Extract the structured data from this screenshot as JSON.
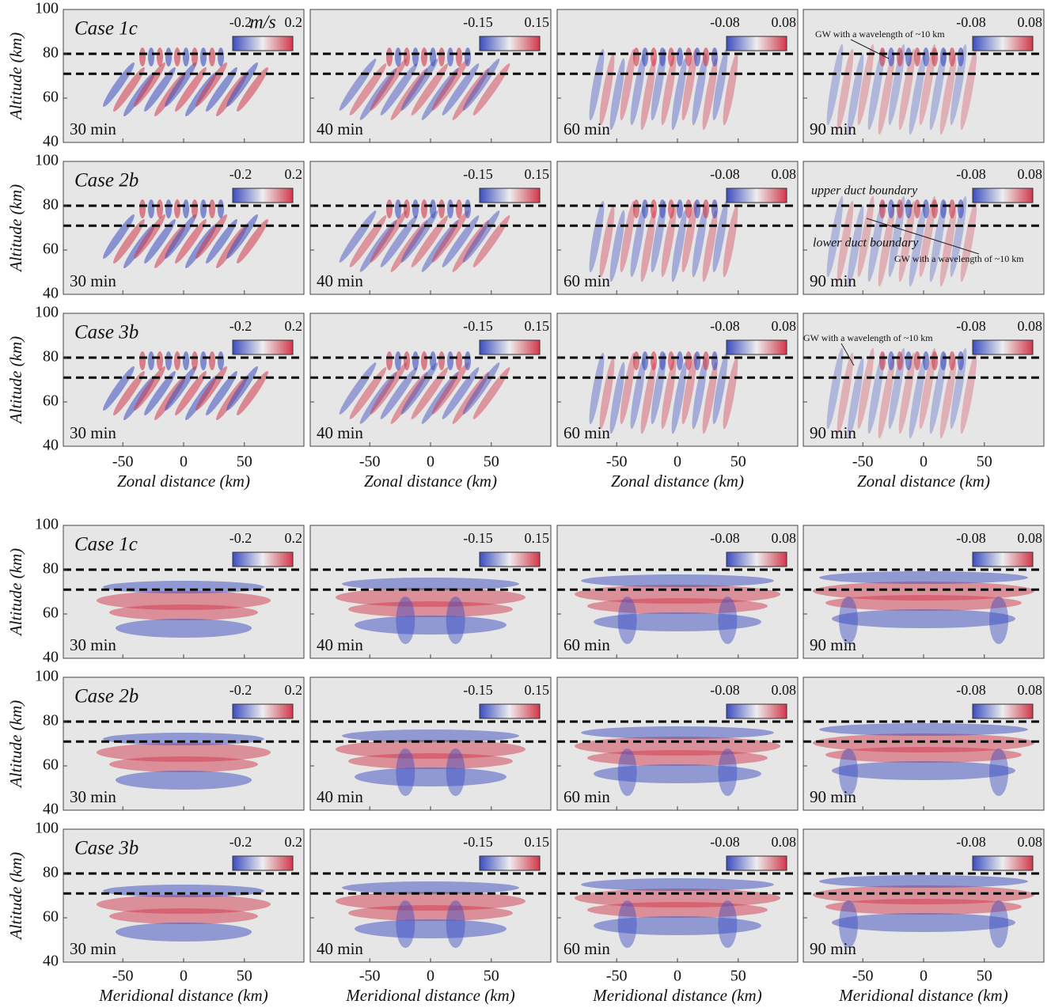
{
  "chart_data": [
    {
      "type": "heatmap_grid",
      "xlabel": "Zonal distance (km)",
      "ylabel": "Altitude (km)",
      "unit": "m/s",
      "xlim": [
        -99,
        99
      ],
      "ylim": [
        40,
        100
      ],
      "xticks": [
        -50,
        0,
        50
      ],
      "yticks": [
        40,
        60,
        80,
        100
      ],
      "duct_boundaries": [
        80,
        71
      ],
      "colormap": [
        "#3b4cc0",
        "#eeeeee",
        "#d0384a"
      ],
      "columns": [
        {
          "time": "30 min",
          "clim": [
            -0.2,
            0.2
          ]
        },
        {
          "time": "40 min",
          "clim": [
            -0.15,
            0.15
          ]
        },
        {
          "time": "60 min",
          "clim": [
            -0.08,
            0.08
          ]
        },
        {
          "time": "90 min",
          "clim": [
            -0.08,
            0.08
          ]
        }
      ],
      "rows": [
        {
          "case": "Case 1c",
          "annotations": {
            "3": [
              "GW with a wavelength of ~10 km"
            ]
          }
        },
        {
          "case": "Case 2b",
          "annotations": {
            "3": [
              "upper duct boundary",
              "lower duct boundary",
              "GW with a wavelength of ~10 km"
            ]
          }
        },
        {
          "case": "Case 3b",
          "annotations": {
            "3": [
              "GW with a wavelength of ~10 km"
            ]
          }
        }
      ]
    },
    {
      "type": "heatmap_grid",
      "xlabel": "Meridional distance (km)",
      "ylabel": "Altitude (km)",
      "xlim": [
        -99,
        99
      ],
      "ylim": [
        40,
        100
      ],
      "xticks": [
        -50,
        0,
        50
      ],
      "yticks": [
        40,
        60,
        80,
        100
      ],
      "duct_boundaries": [
        80,
        71
      ],
      "colormap": [
        "#3b4cc0",
        "#eeeeee",
        "#d0384a"
      ],
      "columns": [
        {
          "time": "30 min",
          "clim": [
            -0.2,
            0.2
          ]
        },
        {
          "time": "40 min",
          "clim": [
            -0.15,
            0.15
          ]
        },
        {
          "time": "60 min",
          "clim": [
            -0.08,
            0.08
          ]
        },
        {
          "time": "90 min",
          "clim": [
            -0.08,
            0.08
          ]
        }
      ],
      "rows": [
        {
          "case": "Case 1c"
        },
        {
          "case": "Case 2b"
        },
        {
          "case": "Case 3b"
        }
      ]
    }
  ]
}
